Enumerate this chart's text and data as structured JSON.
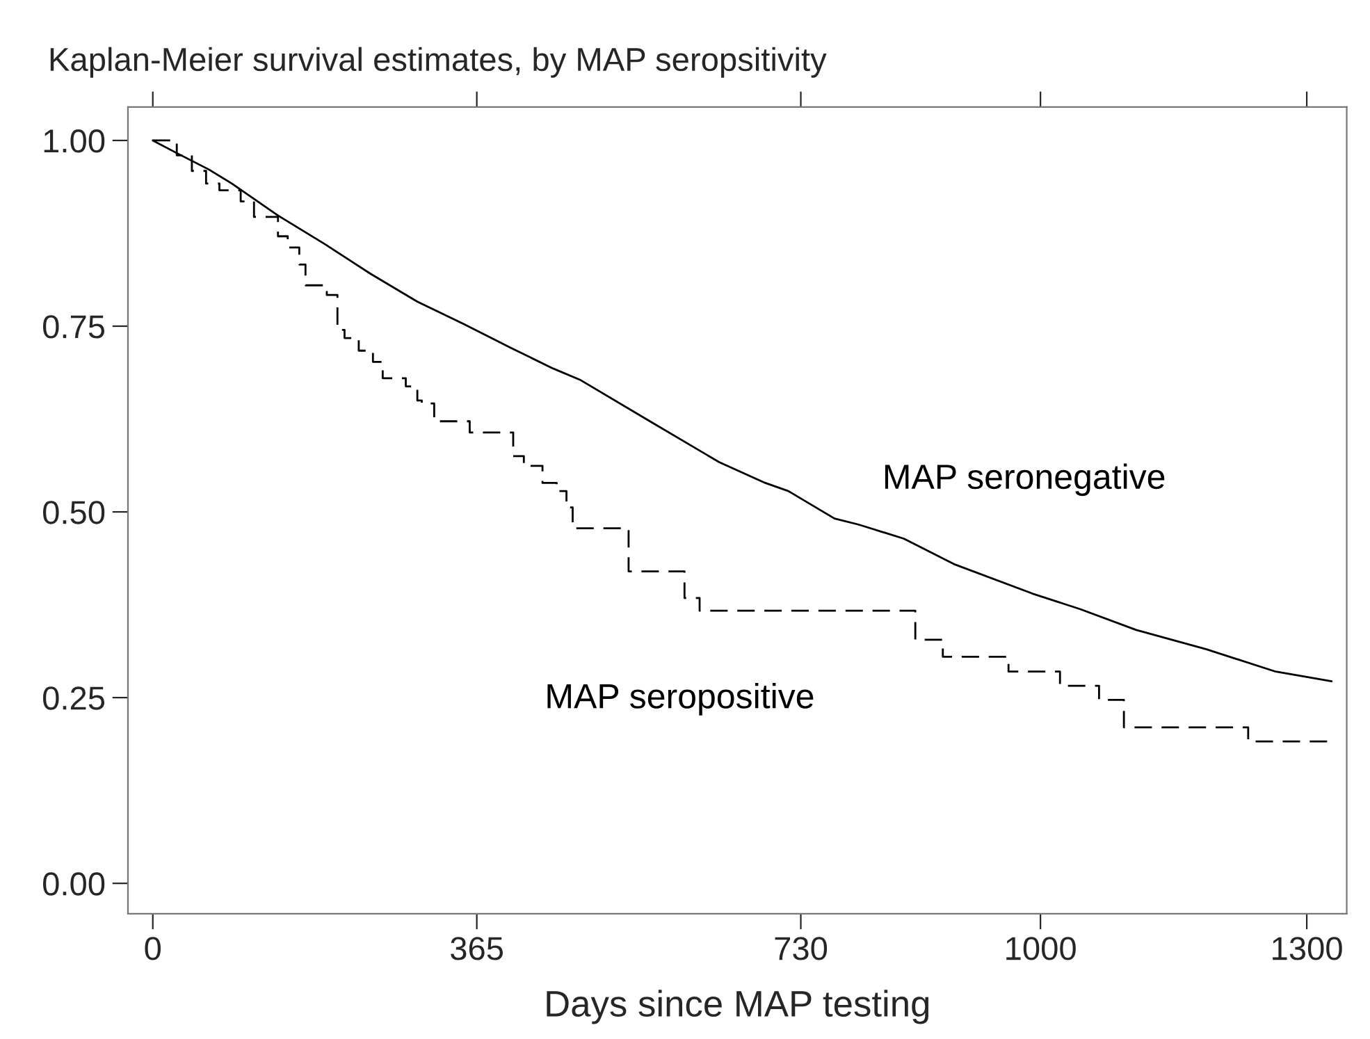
{
  "chart_data": {
    "type": "step",
    "title": "Kaplan-Meier survival estimates, by MAP seropsitivity",
    "xlabel": "Days since MAP testing",
    "series": [
      {
        "type": "line",
        "name": "MAP seronegative",
        "color": "#000000",
        "line_style": "solid",
        "x": [
          0,
          27,
          63,
          89,
          141,
          193,
          246,
          298,
          350,
          403,
          451,
          481,
          560,
          638,
          690,
          716,
          768,
          795,
          846,
          904,
          991,
          1045,
          1108,
          1187,
          1265,
          1328
        ],
        "values": [
          1.0,
          0.983,
          0.961,
          0.942,
          0.899,
          0.861,
          0.82,
          0.783,
          0.753,
          0.721,
          0.693,
          0.678,
          0.622,
          0.567,
          0.539,
          0.528,
          0.491,
          0.483,
          0.464,
          0.429,
          0.39,
          0.369,
          0.341,
          0.315,
          0.285,
          0.272
        ]
      },
      {
        "name": "MAP seropositive",
        "color": "#000000",
        "line_style": "dashed",
        "x": [
          0,
          27,
          44,
          60,
          75,
          99,
          114,
          141,
          152,
          165,
          172,
          196,
          208,
          216,
          232,
          248,
          259,
          285,
          298,
          303,
          317,
          357,
          406,
          418,
          439,
          455,
          466,
          473,
          536,
          599,
          616,
          859,
          890,
          964,
          1022,
          1066,
          1094,
          1234,
          1328
        ],
        "values": [
          1.0,
          0.98,
          0.959,
          0.942,
          0.933,
          0.918,
          0.897,
          0.871,
          0.856,
          0.833,
          0.805,
          0.792,
          0.745,
          0.734,
          0.717,
          0.702,
          0.68,
          0.669,
          0.65,
          0.646,
          0.622,
          0.607,
          0.575,
          0.562,
          0.539,
          0.528,
          0.506,
          0.478,
          0.42,
          0.384,
          0.367,
          0.328,
          0.305,
          0.285,
          0.266,
          0.247,
          0.21,
          0.191,
          0.191
        ]
      }
    ],
    "xlim": [
      -28,
      1345
    ],
    "xticks": [
      0,
      365,
      730,
      1000,
      1300
    ],
    "ylim": [
      -0.041,
      1.045
    ],
    "yticks": [
      {
        "value": 0,
        "label": "0.00"
      },
      {
        "value": 0.25,
        "label": "0.25"
      },
      {
        "value": 0.5,
        "label": "0.50"
      },
      {
        "value": 0.75,
        "label": "0.75"
      },
      {
        "value": 1,
        "label": "1.00"
      }
    ],
    "grid": false,
    "legend": false
  }
}
